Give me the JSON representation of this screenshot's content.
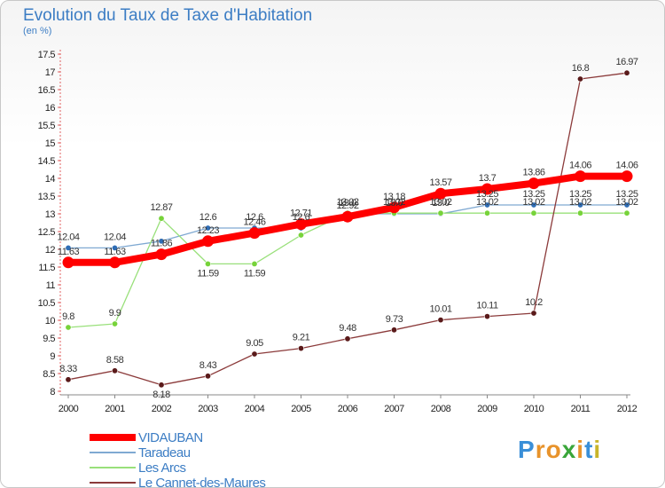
{
  "header": {
    "title": "Evolution du Taux de Taxe d'Habitation",
    "subtitle": "(en %)"
  },
  "logo": {
    "text": "Proxiti",
    "letter_colors": [
      "#3a8fd8",
      "#e8932b",
      "#e8932b",
      "#3aa63a",
      "#e8932b",
      "#3a8fd8",
      "#c9b52a"
    ]
  },
  "chart_data": {
    "type": "line",
    "title": "Evolution du Taux de Taxe d'Habitation",
    "subtitle": "(en %)",
    "xlabel": "",
    "ylabel": "(en %)",
    "x": [
      "2000",
      "2001",
      "2002",
      "2003",
      "2004",
      "2005",
      "2006",
      "2007",
      "2008",
      "2009",
      "2010",
      "2011",
      "2012"
    ],
    "ylim": [
      8,
      17.5
    ],
    "yticks": [
      "8",
      "8.5",
      "9",
      "9.5",
      "10",
      "10.5",
      "11",
      "11.5",
      "12",
      "12.5",
      "13",
      "13.5",
      "14",
      "14.5",
      "15",
      "15.5",
      "16",
      "16.5",
      "17",
      "17.5"
    ],
    "grid": false,
    "legend_position": "bottom-left",
    "series": [
      {
        "name": "VIDAUBAN",
        "color": "#ff0000",
        "marker_color": "#ff0000",
        "values": [
          11.63,
          11.63,
          11.86,
          12.23,
          12.46,
          12.71,
          12.92,
          13.18,
          13.57,
          13.7,
          13.86,
          14.06,
          14.06
        ],
        "labels": [
          "11.63",
          "11.63",
          "11.86",
          "12.23",
          "12.46",
          "12.71",
          "12.92",
          "13.18",
          "13.57",
          "13.7",
          "13.86",
          "14.06",
          "14.06"
        ]
      },
      {
        "name": "Taradeau",
        "color": "#7fa9d2",
        "marker_color": "#2f6db5",
        "values": [
          12.04,
          12.04,
          12.23,
          12.6,
          12.6,
          12.6,
          13.0,
          13.0,
          13.0,
          13.25,
          13.25,
          13.25,
          13.25
        ],
        "labels": [
          "12.04",
          "12.04",
          "",
          "12.6",
          "12.6",
          "12.6",
          "13.0",
          "13.0",
          "13.0",
          "13.25",
          "13.25",
          "13.25",
          "13.25"
        ]
      },
      {
        "name": "Les Arcs",
        "color": "#99e07a",
        "marker_color": "#77d33a",
        "values": [
          9.8,
          9.9,
          12.87,
          11.59,
          11.59,
          12.4,
          13.02,
          13.02,
          13.02,
          13.02,
          13.02,
          13.02,
          13.02
        ],
        "labels": [
          "9.8",
          "9.9",
          "12.87",
          "11.59",
          "11.59",
          "",
          "13.02",
          "13.02",
          "13.02",
          "13.02",
          "13.02",
          "13.02",
          "13.02"
        ]
      },
      {
        "name": "Le Cannet-des-Maures",
        "color": "#8b3a3a",
        "marker_color": "#5a1a1a",
        "values": [
          8.33,
          8.58,
          8.18,
          8.43,
          9.05,
          9.21,
          9.48,
          9.73,
          10.01,
          10.11,
          10.2,
          16.8,
          16.97
        ],
        "labels": [
          "8.33",
          "8.58",
          "8.18",
          "8.43",
          "9.05",
          "9.21",
          "9.48",
          "9.73",
          "10.01",
          "10.11",
          "10.2",
          "16.8",
          "16.97"
        ]
      }
    ]
  }
}
